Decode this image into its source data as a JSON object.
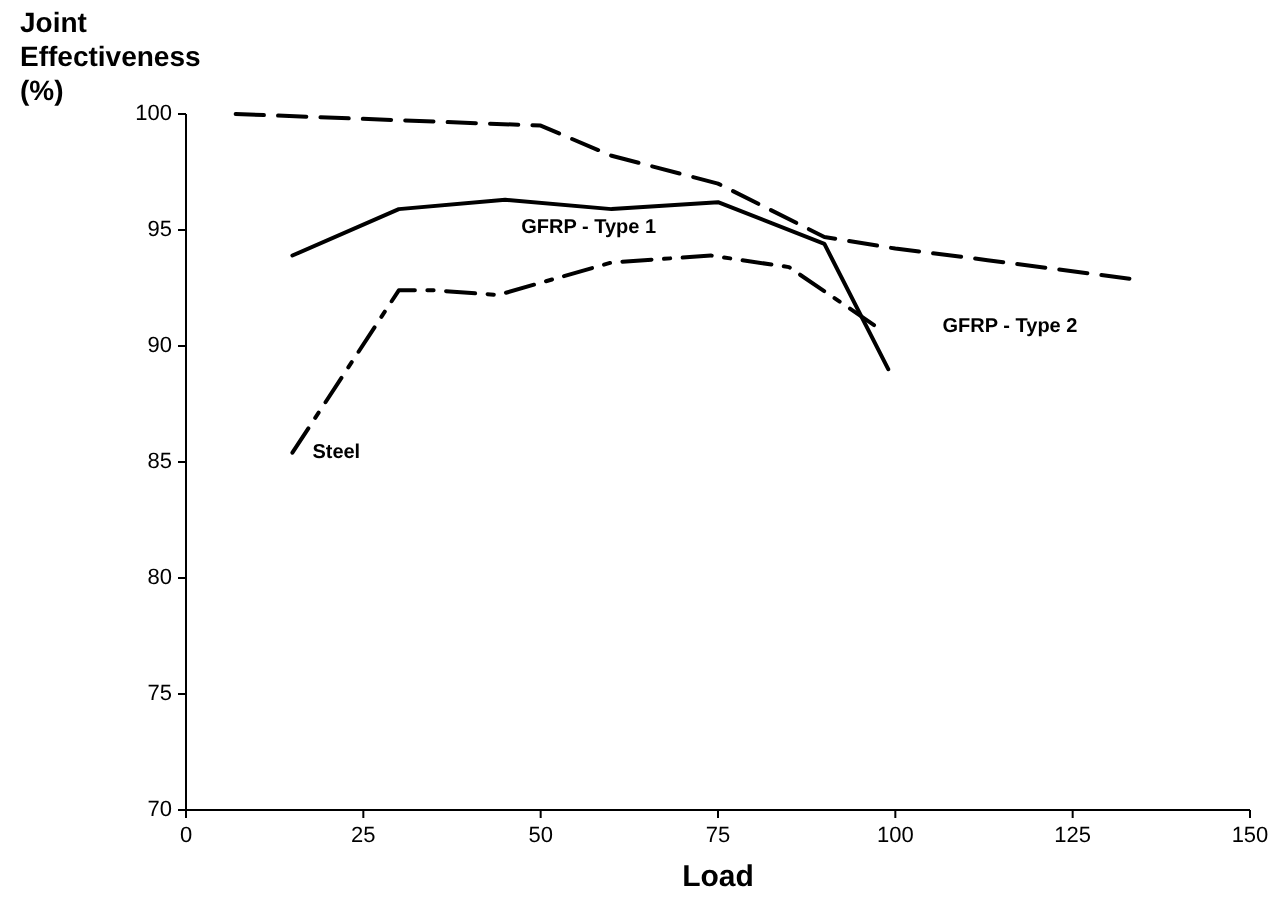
{
  "chart_data": {
    "type": "line",
    "xlabel": "Load",
    "ylabel": "Joint Effectiveness (%)",
    "xlim": [
      0,
      150
    ],
    "xticks": [
      0,
      25,
      50,
      75,
      100,
      125,
      150
    ],
    "ylim": [
      70,
      100
    ],
    "yticks": [
      70,
      75,
      80,
      85,
      90,
      95,
      100
    ],
    "grid": false,
    "marker": "none",
    "series": [
      {
        "name": "GFRP - Type 1",
        "color": "#000000",
        "line_style": "solid",
        "x": [
          15,
          30,
          45,
          60,
          75,
          90,
          99
        ],
        "values": [
          93.9,
          95.9,
          96.3,
          95.9,
          96.2,
          94.4,
          89
        ]
      },
      {
        "name": "GFRP - Type 2",
        "color": "#000000",
        "line_style": "dashed",
        "x": [
          7,
          50,
          60,
          75,
          90,
          100,
          113,
          133
        ],
        "values": [
          100,
          99.5,
          98.2,
          97,
          94.7,
          94.2,
          93.7,
          92.9
        ]
      },
      {
        "name": "Steel",
        "color": "#000000",
        "line_style": "dashdot",
        "x": [
          15,
          30,
          35,
          44,
          60,
          74,
          85,
          97
        ],
        "values": [
          85.4,
          92.4,
          92.4,
          92.2,
          93.6,
          93.9,
          93.4,
          90.9
        ]
      }
    ]
  }
}
